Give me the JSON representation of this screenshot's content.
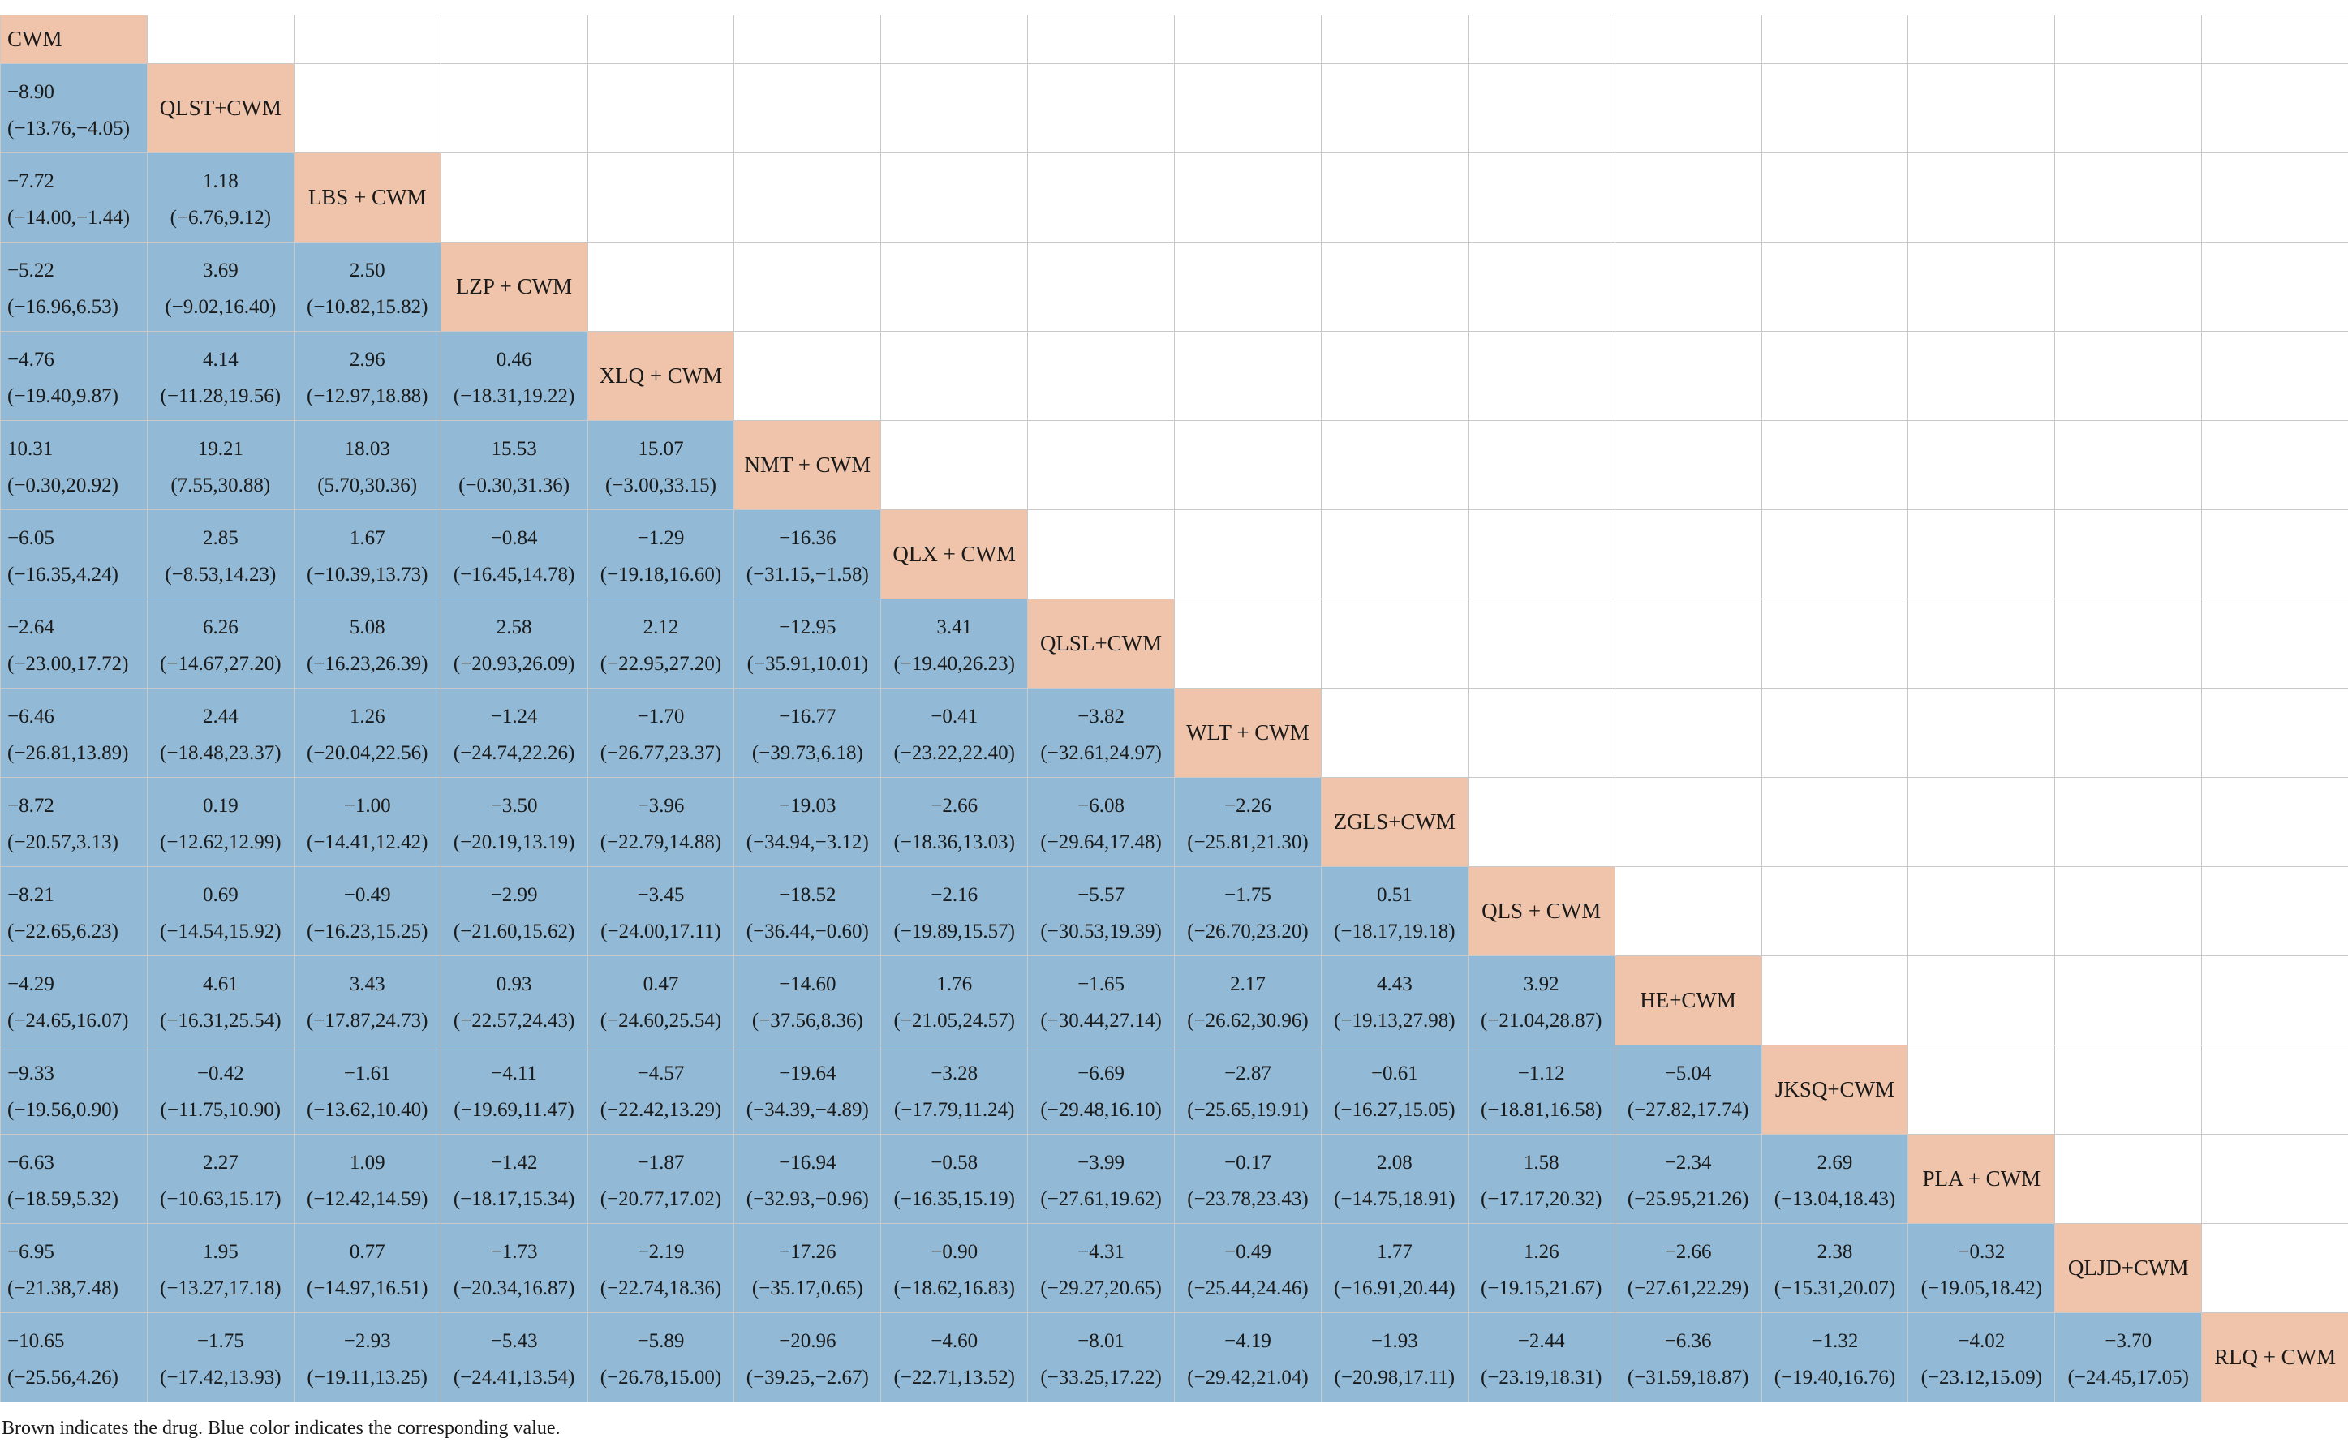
{
  "treatments": [
    "CWM",
    "QLST+CWM",
    "LBS + CWM",
    "LZP + CWM",
    "XLQ + CWM",
    "NMT + CWM",
    "QLX + CWM",
    "QLSL+CWM",
    "WLT + CWM",
    "ZGLS+CWM",
    "QLS + CWM",
    "HE+CWM",
    "JKSQ+CWM",
    "PLA + CWM",
    "QLJD+CWM",
    "RLQ + CWM"
  ],
  "rows": [
    [],
    [
      {
        "est": "−8.90",
        "ci": "(−13.76,−4.05)"
      }
    ],
    [
      {
        "est": "−7.72",
        "ci": "(−14.00,−1.44)"
      },
      {
        "est": "1.18",
        "ci": "(−6.76,9.12)"
      }
    ],
    [
      {
        "est": "−5.22",
        "ci": "(−16.96,6.53)"
      },
      {
        "est": "3.69",
        "ci": "(−9.02,16.40)"
      },
      {
        "est": "2.50",
        "ci": "(−10.82,15.82)"
      }
    ],
    [
      {
        "est": "−4.76",
        "ci": "(−19.40,9.87)"
      },
      {
        "est": "4.14",
        "ci": "(−11.28,19.56)"
      },
      {
        "est": "2.96",
        "ci": "(−12.97,18.88)"
      },
      {
        "est": "0.46",
        "ci": "(−18.31,19.22)"
      }
    ],
    [
      {
        "est": "10.31",
        "ci": "(−0.30,20.92)"
      },
      {
        "est": "19.21",
        "ci": "(7.55,30.88)"
      },
      {
        "est": "18.03",
        "ci": "(5.70,30.36)"
      },
      {
        "est": "15.53",
        "ci": "(−0.30,31.36)"
      },
      {
        "est": "15.07",
        "ci": "(−3.00,33.15)"
      }
    ],
    [
      {
        "est": "−6.05",
        "ci": "(−16.35,4.24)"
      },
      {
        "est": "2.85",
        "ci": "(−8.53,14.23)"
      },
      {
        "est": "1.67",
        "ci": "(−10.39,13.73)"
      },
      {
        "est": "−0.84",
        "ci": "(−16.45,14.78)"
      },
      {
        "est": "−1.29",
        "ci": "(−19.18,16.60)"
      },
      {
        "est": "−16.36",
        "ci": "(−31.15,−1.58)"
      }
    ],
    [
      {
        "est": "−2.64",
        "ci": "(−23.00,17.72)"
      },
      {
        "est": "6.26",
        "ci": "(−14.67,27.20)"
      },
      {
        "est": "5.08",
        "ci": "(−16.23,26.39)"
      },
      {
        "est": "2.58",
        "ci": "(−20.93,26.09)"
      },
      {
        "est": "2.12",
        "ci": "(−22.95,27.20)"
      },
      {
        "est": "−12.95",
        "ci": "(−35.91,10.01)"
      },
      {
        "est": "3.41",
        "ci": "(−19.40,26.23)"
      }
    ],
    [
      {
        "est": "−6.46",
        "ci": "(−26.81,13.89)"
      },
      {
        "est": "2.44",
        "ci": "(−18.48,23.37)"
      },
      {
        "est": "1.26",
        "ci": "(−20.04,22.56)"
      },
      {
        "est": "−1.24",
        "ci": "(−24.74,22.26)"
      },
      {
        "est": "−1.70",
        "ci": "(−26.77,23.37)"
      },
      {
        "est": "−16.77",
        "ci": "(−39.73,6.18)"
      },
      {
        "est": "−0.41",
        "ci": "(−23.22,22.40)"
      },
      {
        "est": "−3.82",
        "ci": "(−32.61,24.97)"
      }
    ],
    [
      {
        "est": "−8.72",
        "ci": "(−20.57,3.13)"
      },
      {
        "est": "0.19",
        "ci": "(−12.62,12.99)"
      },
      {
        "est": "−1.00",
        "ci": "(−14.41,12.42)"
      },
      {
        "est": "−3.50",
        "ci": "(−20.19,13.19)"
      },
      {
        "est": "−3.96",
        "ci": "(−22.79,14.88)"
      },
      {
        "est": "−19.03",
        "ci": "(−34.94,−3.12)"
      },
      {
        "est": "−2.66",
        "ci": "(−18.36,13.03)"
      },
      {
        "est": "−6.08",
        "ci": "(−29.64,17.48)"
      },
      {
        "est": "−2.26",
        "ci": "(−25.81,21.30)"
      }
    ],
    [
      {
        "est": "−8.21",
        "ci": "(−22.65,6.23)"
      },
      {
        "est": "0.69",
        "ci": "(−14.54,15.92)"
      },
      {
        "est": "−0.49",
        "ci": "(−16.23,15.25)"
      },
      {
        "est": "−2.99",
        "ci": "(−21.60,15.62)"
      },
      {
        "est": "−3.45",
        "ci": "(−24.00,17.11)"
      },
      {
        "est": "−18.52",
        "ci": "(−36.44,−0.60)"
      },
      {
        "est": "−2.16",
        "ci": "(−19.89,15.57)"
      },
      {
        "est": "−5.57",
        "ci": "(−30.53,19.39)"
      },
      {
        "est": "−1.75",
        "ci": "(−26.70,23.20)"
      },
      {
        "est": "0.51",
        "ci": "(−18.17,19.18)"
      }
    ],
    [
      {
        "est": "−4.29",
        "ci": "(−24.65,16.07)"
      },
      {
        "est": "4.61",
        "ci": "(−16.31,25.54)"
      },
      {
        "est": "3.43",
        "ci": "(−17.87,24.73)"
      },
      {
        "est": "0.93",
        "ci": "(−22.57,24.43)"
      },
      {
        "est": "0.47",
        "ci": "(−24.60,25.54)"
      },
      {
        "est": "−14.60",
        "ci": "(−37.56,8.36)"
      },
      {
        "est": "1.76",
        "ci": "(−21.05,24.57)"
      },
      {
        "est": "−1.65",
        "ci": "(−30.44,27.14)"
      },
      {
        "est": "2.17",
        "ci": "(−26.62,30.96)"
      },
      {
        "est": "4.43",
        "ci": "(−19.13,27.98)"
      },
      {
        "est": "3.92",
        "ci": "(−21.04,28.87)"
      }
    ],
    [
      {
        "est": "−9.33",
        "ci": "(−19.56,0.90)"
      },
      {
        "est": "−0.42",
        "ci": "(−11.75,10.90)"
      },
      {
        "est": "−1.61",
        "ci": "(−13.62,10.40)"
      },
      {
        "est": "−4.11",
        "ci": "(−19.69,11.47)"
      },
      {
        "est": "−4.57",
        "ci": "(−22.42,13.29)"
      },
      {
        "est": "−19.64",
        "ci": "(−34.39,−4.89)"
      },
      {
        "est": "−3.28",
        "ci": "(−17.79,11.24)"
      },
      {
        "est": "−6.69",
        "ci": "(−29.48,16.10)"
      },
      {
        "est": "−2.87",
        "ci": "(−25.65,19.91)"
      },
      {
        "est": "−0.61",
        "ci": "(−16.27,15.05)"
      },
      {
        "est": "−1.12",
        "ci": "(−18.81,16.58)"
      },
      {
        "est": "−5.04",
        "ci": "(−27.82,17.74)"
      }
    ],
    [
      {
        "est": "−6.63",
        "ci": "(−18.59,5.32)"
      },
      {
        "est": "2.27",
        "ci": "(−10.63,15.17)"
      },
      {
        "est": "1.09",
        "ci": "(−12.42,14.59)"
      },
      {
        "est": "−1.42",
        "ci": "(−18.17,15.34)"
      },
      {
        "est": "−1.87",
        "ci": "(−20.77,17.02)"
      },
      {
        "est": "−16.94",
        "ci": "(−32.93,−0.96)"
      },
      {
        "est": "−0.58",
        "ci": "(−16.35,15.19)"
      },
      {
        "est": "−3.99",
        "ci": "(−27.61,19.62)"
      },
      {
        "est": "−0.17",
        "ci": "(−23.78,23.43)"
      },
      {
        "est": "2.08",
        "ci": "(−14.75,18.91)"
      },
      {
        "est": "1.58",
        "ci": "(−17.17,20.32)"
      },
      {
        "est": "−2.34",
        "ci": "(−25.95,21.26)"
      },
      {
        "est": "2.69",
        "ci": "(−13.04,18.43)"
      }
    ],
    [
      {
        "est": "−6.95",
        "ci": "(−21.38,7.48)"
      },
      {
        "est": "1.95",
        "ci": "(−13.27,17.18)"
      },
      {
        "est": "0.77",
        "ci": "(−14.97,16.51)"
      },
      {
        "est": "−1.73",
        "ci": "(−20.34,16.87)"
      },
      {
        "est": "−2.19",
        "ci": "(−22.74,18.36)"
      },
      {
        "est": "−17.26",
        "ci": "(−35.17,0.65)"
      },
      {
        "est": "−0.90",
        "ci": "(−18.62,16.83)"
      },
      {
        "est": "−4.31",
        "ci": "(−29.27,20.65)"
      },
      {
        "est": "−0.49",
        "ci": "(−25.44,24.46)"
      },
      {
        "est": "1.77",
        "ci": "(−16.91,20.44)"
      },
      {
        "est": "1.26",
        "ci": "(−19.15,21.67)"
      },
      {
        "est": "−2.66",
        "ci": "(−27.61,22.29)"
      },
      {
        "est": "2.38",
        "ci": "(−15.31,20.07)"
      },
      {
        "est": "−0.32",
        "ci": "(−19.05,18.42)"
      }
    ],
    [
      {
        "est": "−10.65",
        "ci": "(−25.56,4.26)"
      },
      {
        "est": "−1.75",
        "ci": "(−17.42,13.93)"
      },
      {
        "est": "−2.93",
        "ci": "(−19.11,13.25)"
      },
      {
        "est": "−5.43",
        "ci": "(−24.41,13.54)"
      },
      {
        "est": "−5.89",
        "ci": "(−26.78,15.00)"
      },
      {
        "est": "−20.96",
        "ci": "(−39.25,−2.67)"
      },
      {
        "est": "−4.60",
        "ci": "(−22.71,13.52)"
      },
      {
        "est": "−8.01",
        "ci": "(−33.25,17.22)"
      },
      {
        "est": "−4.19",
        "ci": "(−29.42,21.04)"
      },
      {
        "est": "−1.93",
        "ci": "(−20.98,17.11)"
      },
      {
        "est": "−2.44",
        "ci": "(−23.19,18.31)"
      },
      {
        "est": "−6.36",
        "ci": "(−31.59,18.87)"
      },
      {
        "est": "−1.32",
        "ci": "(−19.40,16.76)"
      },
      {
        "est": "−4.02",
        "ci": "(−23.12,15.09)"
      },
      {
        "est": "−3.70",
        "ci": "(−24.45,17.05)"
      }
    ]
  ],
  "colors": {
    "drug": "#f0c4aa",
    "value": "#92bad6",
    "empty": "#ffffff",
    "grid": "#c9c9c9"
  },
  "footnote": "Brown indicates the drug. Blue color indicates the corresponding value."
}
